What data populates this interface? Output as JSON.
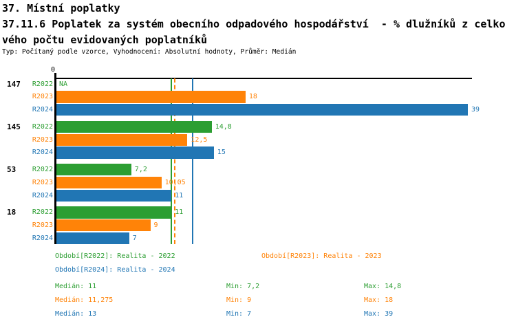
{
  "header": {
    "title_line1": "37. Místní poplatky",
    "title_line2": "37.11.6 Poplatek za systém obecního odpadového hospodářství  - % dlužníků z celko",
    "title_line3": "vého počtu evidovaných poplatníků",
    "meta_line": "Typ: Počítaný podle vzorce, Vyhodnocení: Absolutní hodnoty, Průměr: Medián"
  },
  "colors": {
    "r2022": "#2C9E32",
    "r2023": "#FF8308",
    "r2024": "#2176B4",
    "axis": "#000000",
    "background": "#FFFFFF"
  },
  "chart_data": {
    "type": "bar",
    "orientation": "horizontal",
    "title": "",
    "xlabel": "",
    "ylabel": "",
    "xlim": [
      0,
      39.4
    ],
    "grid": false,
    "zero_tick_label": "0",
    "categories": [
      "147",
      "145",
      "53",
      "18"
    ],
    "series": [
      {
        "name": "R2022",
        "color": "#2C9E32",
        "values": [
          null,
          14.8,
          7.2,
          11
        ],
        "value_labels": [
          "NA",
          "14,8",
          "7,2",
          "11"
        ],
        "median": 11,
        "median_line_style": "solid"
      },
      {
        "name": "R2023",
        "color": "#FF8308",
        "values": [
          18,
          12.5,
          10.05,
          9
        ],
        "value_labels": [
          "18",
          "12,5",
          "10,05",
          "9"
        ],
        "median": 11.275,
        "median_line_style": "dashed"
      },
      {
        "name": "R2024",
        "color": "#2176B4",
        "values": [
          39,
          15,
          11,
          7
        ],
        "value_labels": [
          "39",
          "15",
          "11",
          "7"
        ],
        "median": 13,
        "median_line_style": "solid"
      }
    ]
  },
  "legend": {
    "items": [
      {
        "label": "Období[R2022]: Realita - 2022",
        "color": "#2C9E32"
      },
      {
        "label": "Období[R2023]: Realita - 2023",
        "color": "#FF8308"
      },
      {
        "label": "Období[R2024]: Realita - 2024",
        "color": "#2176B4"
      }
    ]
  },
  "stats": {
    "rows": [
      {
        "median": "Medián: 11",
        "min": "Min: 7,2",
        "max": "Max: 14,8",
        "color": "#2C9E32"
      },
      {
        "median": "Medián: 11,275",
        "min": "Min: 9",
        "max": "Max: 18",
        "color": "#FF8308"
      },
      {
        "median": "Medián: 13",
        "min": "Min: 7",
        "max": "Max: 39",
        "color": "#2176B4"
      }
    ]
  }
}
